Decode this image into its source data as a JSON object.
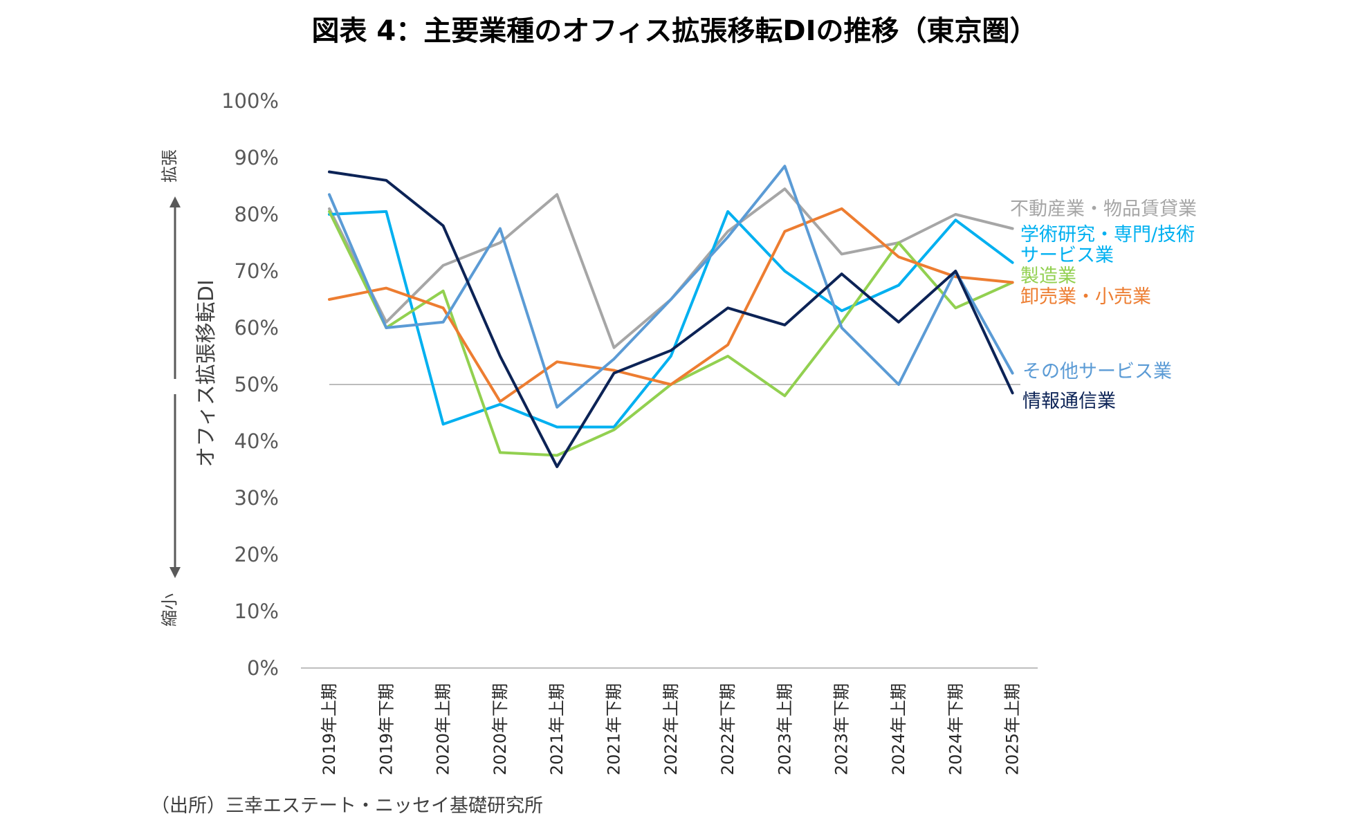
{
  "chart_data": {
    "type": "line",
    "title": "図表 4：主要業種のオフィス拡張移転DIの推移（東京圏）",
    "ylabel": "オフィス拡張移転DI",
    "ylim": [
      0,
      100
    ],
    "yticks": [
      "0%",
      "10%",
      "20%",
      "30%",
      "40%",
      "50%",
      "60%",
      "70%",
      "80%",
      "90%",
      "100%"
    ],
    "reference_line": 50,
    "direction_labels": {
      "up": "拡張",
      "down": "縮小"
    },
    "categories": [
      "2019年上期",
      "2019年下期",
      "2020年上期",
      "2020年下期",
      "2021年上期",
      "2021年下期",
      "2022年上期",
      "2022年下期",
      "2023年上期",
      "2023年下期",
      "2024年上期",
      "2024年下期",
      "2025年上期"
    ],
    "series": [
      {
        "name": "不動産業・物品賃貸業",
        "color": "#a6a6a6",
        "values": [
          81,
          61,
          71,
          75,
          83.5,
          56.5,
          65,
          77,
          84.5,
          73,
          75,
          80,
          77.5
        ]
      },
      {
        "name": "学術研究・専門/技術サービス業",
        "color": "#00b0f0",
        "values": [
          80,
          80.5,
          43,
          46.5,
          42.5,
          42.5,
          55,
          80.5,
          70,
          63,
          67.5,
          79,
          71.5
        ]
      },
      {
        "name": "製造業",
        "color": "#92d050",
        "values": [
          80.5,
          60,
          66.5,
          38,
          37.5,
          42,
          50,
          55,
          48,
          61,
          75,
          63.5,
          68
        ]
      },
      {
        "name": "卸売業・小売業",
        "color": "#ed7d31",
        "values": [
          65,
          67,
          63.5,
          47,
          54,
          52.5,
          50,
          57,
          77,
          81,
          72.5,
          69,
          68
        ]
      },
      {
        "name": "その他サービス業",
        "color": "#5b9bd5",
        "values": [
          83.5,
          60,
          61,
          77.5,
          46,
          54.5,
          65,
          76,
          88.5,
          60,
          50,
          70,
          52
        ]
      },
      {
        "name": "情報通信業",
        "color": "#0c2356",
        "values": [
          87.5,
          86,
          78,
          55,
          35.5,
          52,
          56,
          63.5,
          60.5,
          69.5,
          61,
          70,
          48.5
        ]
      }
    ]
  },
  "source": "（出所）三幸エステート・ニッセイ基礎研究所"
}
